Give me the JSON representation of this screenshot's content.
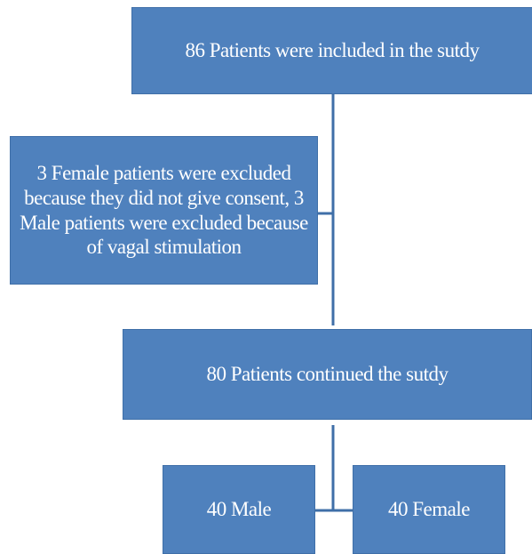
{
  "nodes": [
    {
      "label": "86 Patients were included in the sutdy"
    },
    {
      "label": "3 Female patients were excluded because they did not give consent, 3 Male patients were excluded because of vagal stimulation"
    },
    {
      "label": "80 Patients continued the sutdy"
    },
    {
      "label": "40 Male"
    },
    {
      "label": "40 Female"
    }
  ]
}
